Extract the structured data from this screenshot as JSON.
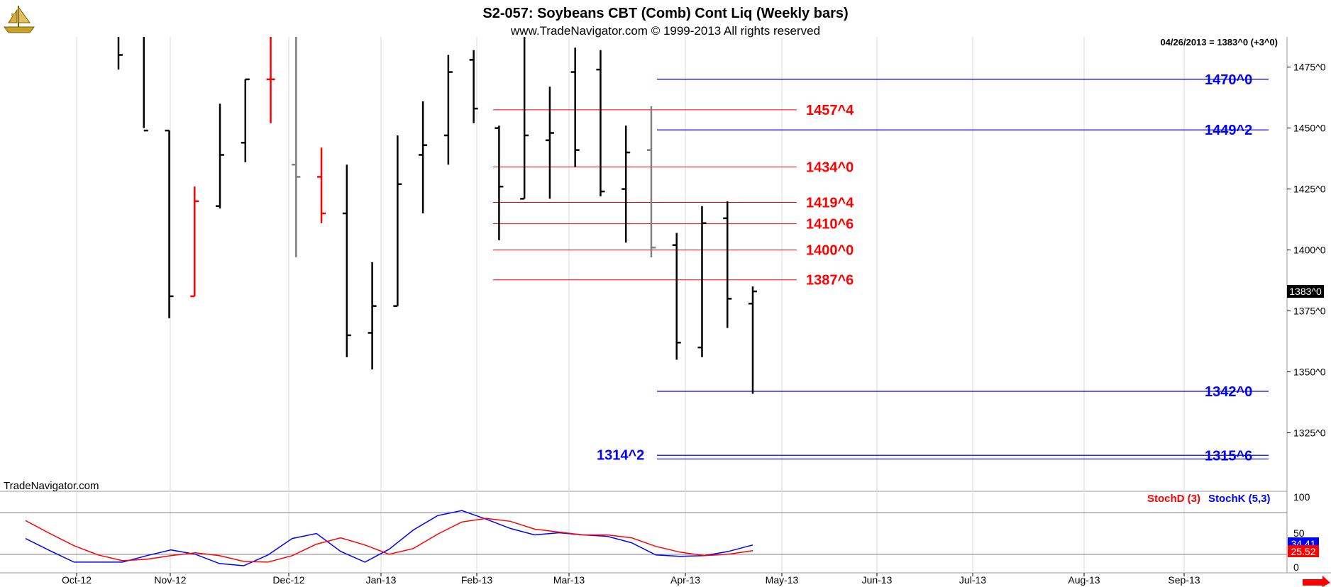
{
  "header": {
    "title": "S2-057:  Soybeans CBT (Comb) Cont Liq  (Weekly bars)",
    "subtitle": "www.TradeNavigator.com © 1999-2013 All rights reserved",
    "last_info": "04/26/2013 = 1383^0 (+3^0)",
    "watermark": "TradeNavigator.com"
  },
  "colors": {
    "up": "#000000",
    "red": "#ff0000",
    "blue": "#0000ff",
    "gray": "#808080",
    "panel_bg": "#ffffff",
    "grid": "#d9d9d9"
  },
  "chart_data": [
    {
      "type": "ohlc",
      "title": "S2-057:  Soybeans CBT (Comb) Cont Liq  (Weekly bars)",
      "ylim": [
        1301,
        1488
      ],
      "y_ticks": [
        1325,
        1350,
        1375,
        1400,
        1425,
        1450,
        1475
      ],
      "y_tick_labels": [
        "1325^0",
        "1350^0",
        "1375^0",
        "1400^0",
        "1425^0",
        "1450^0",
        "1475^0"
      ],
      "last_price_label": "1383^0",
      "x_labels": [
        "Oct-12",
        "Nov-12",
        "Dec-12",
        "Jan-13",
        "Feb-13",
        "Mar-13",
        "Apr-13",
        "May-13",
        "Jun-13",
        "Jul-13",
        "Aug-13",
        "Sep-13"
      ],
      "bars": [
        {
          "h": 1490,
          "l": 1474,
          "o": 1488,
          "c": 1480,
          "color": "#000000"
        },
        {
          "h": 1495,
          "l": 1450,
          "o": 1488,
          "c": 1449,
          "color": "#000000"
        },
        {
          "h": 1449,
          "l": 1372,
          "o": 1449,
          "c": 1381,
          "color": "#000000"
        },
        {
          "h": 1426,
          "l": 1381,
          "o": 1381,
          "c": 1420,
          "color": "#ff0000"
        },
        {
          "h": 1460,
          "l": 1417,
          "o": 1418,
          "c": 1439,
          "color": "#000000"
        },
        {
          "h": 1470,
          "l": 1436,
          "o": 1444,
          "c": 1470,
          "color": "#000000"
        },
        {
          "h": 1490,
          "l": 1452,
          "o": 1470,
          "c": 1470,
          "color": "#ff0000"
        },
        {
          "h": 1490,
          "l": 1397,
          "o": 1435,
          "c": 1430,
          "color": "#808080"
        },
        {
          "h": 1442,
          "l": 1411,
          "o": 1430,
          "c": 1415,
          "color": "#ff0000"
        },
        {
          "h": 1435,
          "l": 1356,
          "o": 1415,
          "c": 1365,
          "color": "#000000"
        },
        {
          "h": 1395,
          "l": 1351,
          "o": 1366,
          "c": 1377,
          "color": "#000000"
        },
        {
          "h": 1447,
          "l": 1377,
          "o": 1377,
          "c": 1427,
          "color": "#000000"
        },
        {
          "h": 1461,
          "l": 1415,
          "o": 1439,
          "c": 1443,
          "color": "#000000"
        },
        {
          "h": 1480,
          "l": 1435,
          "o": 1447,
          "c": 1473,
          "color": "#000000"
        },
        {
          "h": 1482,
          "l": 1452,
          "o": 1478,
          "c": 1458,
          "color": "#000000"
        },
        {
          "h": 1451,
          "l": 1404,
          "o": 1450,
          "c": 1426,
          "color": "#000000"
        },
        {
          "h": 1490,
          "l": 1421,
          "o": 1421,
          "c": 1447,
          "color": "#000000"
        },
        {
          "h": 1467,
          "l": 1421,
          "o": 1445,
          "c": 1448,
          "color": "#000000"
        },
        {
          "h": 1483,
          "l": 1434,
          "o": 1473,
          "c": 1441,
          "color": "#000000"
        },
        {
          "h": 1482,
          "l": 1422,
          "o": 1474,
          "c": 1424,
          "color": "#000000"
        },
        {
          "h": 1451,
          "l": 1403,
          "o": 1425,
          "c": 1440,
          "color": "#000000"
        },
        {
          "h": 1459,
          "l": 1397,
          "o": 1441,
          "c": 1401,
          "color": "#808080"
        },
        {
          "h": 1407,
          "l": 1355,
          "o": 1402,
          "c": 1362,
          "color": "#000000"
        },
        {
          "h": 1418,
          "l": 1356,
          "o": 1360,
          "c": 1411,
          "color": "#000000"
        },
        {
          "h": 1420,
          "l": 1368,
          "o": 1413,
          "c": 1380,
          "color": "#000000"
        },
        {
          "h": 1385,
          "l": 1341,
          "o": 1378,
          "c": 1383,
          "color": "#000000"
        }
      ],
      "blue_levels": [
        {
          "value": 1470.0,
          "label": "1470^0"
        },
        {
          "value": 1449.25,
          "label": "1449^2"
        },
        {
          "value": 1342.0,
          "label": "1342^0"
        },
        {
          "value": 1315.75,
          "label": "1315^6"
        },
        {
          "value": 1314.25,
          "label": "1314^2"
        }
      ],
      "red_levels": [
        {
          "value": 1457.5,
          "label": "1457^4"
        },
        {
          "value": 1434.0,
          "label": "1434^0"
        },
        {
          "value": 1419.5,
          "label": "1419^4"
        },
        {
          "value": 1410.75,
          "label": "1410^6"
        },
        {
          "value": 1400.0,
          "label": "1400^0"
        },
        {
          "value": 1387.75,
          "label": "1387^6"
        }
      ]
    },
    {
      "type": "line",
      "title": "",
      "legend": [
        "StochD (3)",
        "StochK (5,3)"
      ],
      "ylim": [
        0,
        100
      ],
      "y_ticks": [
        0,
        50,
        100
      ],
      "y_tick_labels": [
        "0",
        "50",
        "100"
      ],
      "last_values": {
        "stoch_k": "34.41",
        "stoch_d": "25.52"
      },
      "series": [
        {
          "name": "StochK (5,3)",
          "color": "#0000ff",
          "values": [
            43,
            26,
            10,
            10,
            10,
            19,
            27,
            21,
            8,
            5,
            20,
            43,
            50,
            25,
            10,
            28,
            55,
            75,
            82,
            70,
            57,
            48,
            51,
            48,
            46,
            37,
            20,
            18,
            19,
            25,
            34
          ]
        },
        {
          "name": "StochD (3)",
          "color": "#ff0000",
          "values": [
            68,
            50,
            33,
            20,
            12,
            14,
            19,
            23,
            19,
            11,
            10,
            19,
            35,
            44,
            34,
            21,
            29,
            49,
            66,
            71,
            67,
            56,
            52,
            48,
            48,
            44,
            32,
            24,
            19,
            21,
            26
          ]
        }
      ]
    }
  ]
}
